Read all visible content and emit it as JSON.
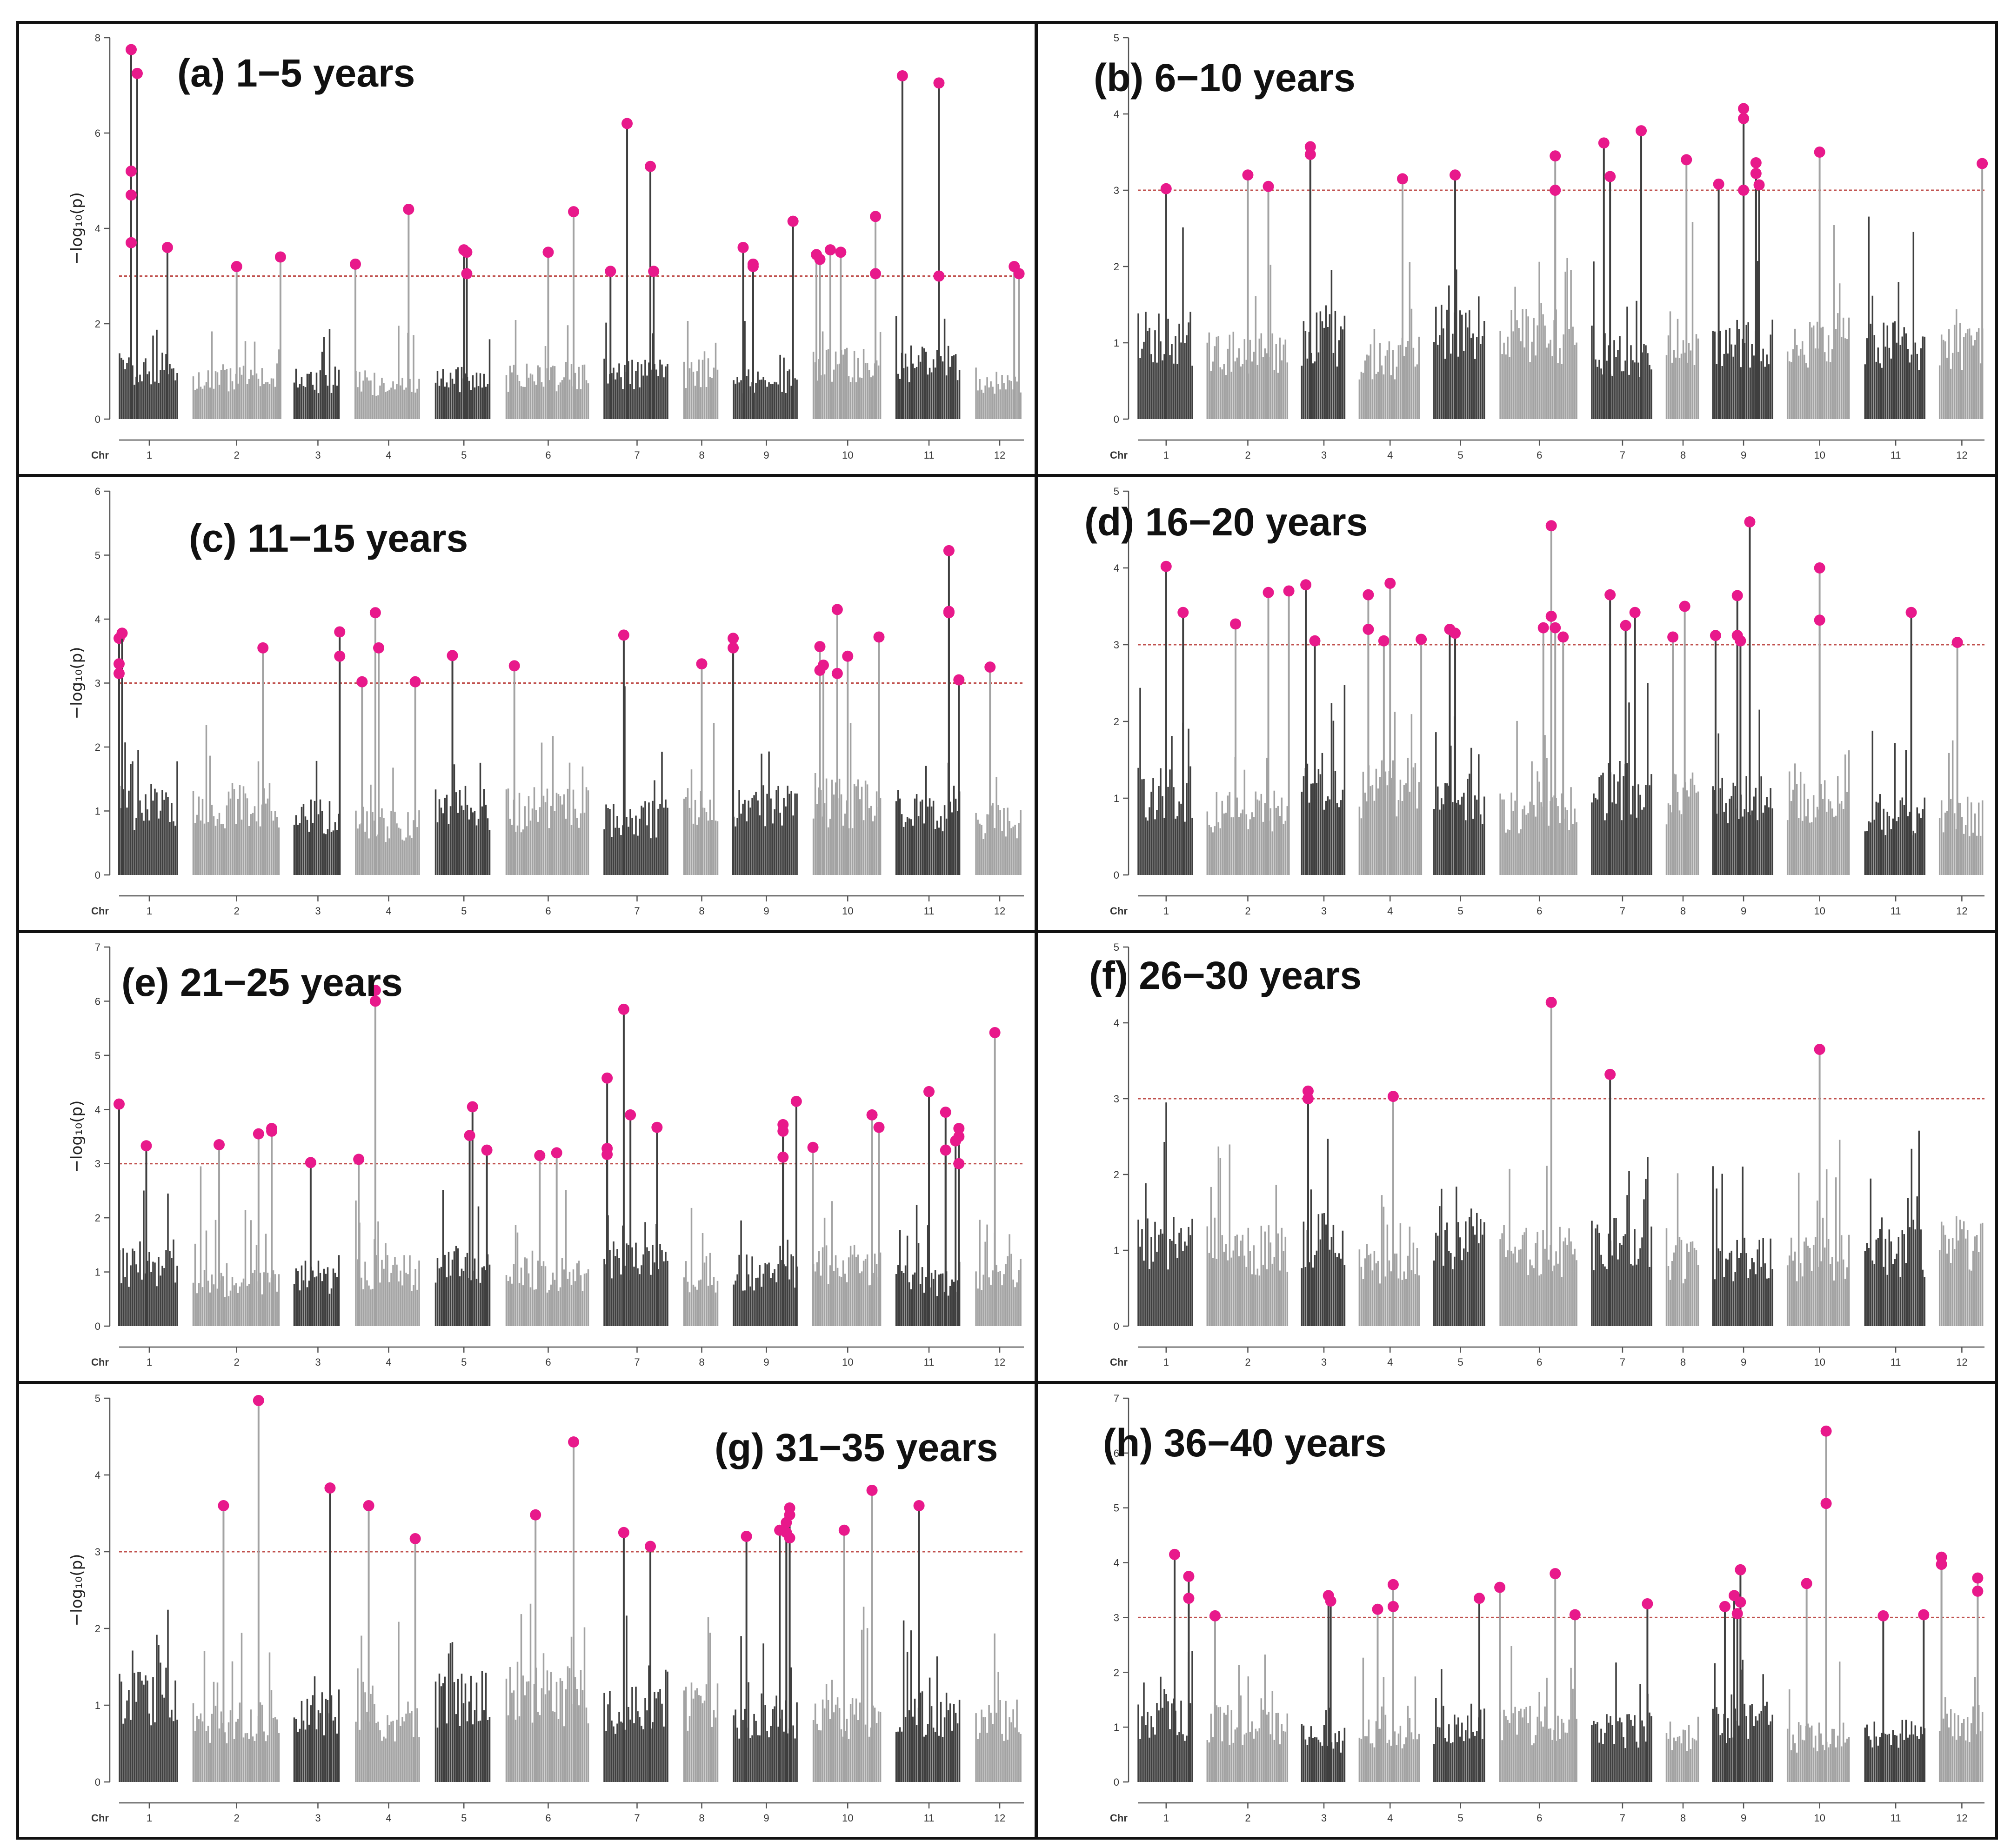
{
  "figure": {
    "axis_label": "−log₁₀(p)",
    "chr_label": "Chr",
    "chromosomes": [
      "1",
      "2",
      "3",
      "4",
      "5",
      "6",
      "7",
      "8",
      "9",
      "10",
      "11",
      "12"
    ],
    "threshold": 3,
    "colors": {
      "dark": "#3f3f3f",
      "light": "#a3a3a3",
      "peak": "#e8198b",
      "threshold": "#c0504d"
    }
  },
  "chart_data": [
    {
      "type": "scatter",
      "title": "(a) 1−5 years",
      "ylim": [
        0,
        8
      ],
      "yticks": [
        0,
        2,
        4,
        6,
        8
      ],
      "ylabel": "−log₁₀(p)",
      "xlabel": "Chr",
      "threshold": 3,
      "peaks": [
        [
          1,
          0.2,
          7.75
        ],
        [
          1,
          0.3,
          7.25
        ],
        [
          1,
          0.2,
          5.2
        ],
        [
          1,
          0.2,
          4.7
        ],
        [
          1,
          0.2,
          3.7
        ],
        [
          1,
          0.8,
          3.6
        ],
        [
          2,
          0.5,
          3.2
        ],
        [
          2,
          1.0,
          3.4
        ],
        [
          4,
          0.0,
          3.25
        ],
        [
          4,
          0.8,
          4.4
        ],
        [
          5,
          0.5,
          3.55
        ],
        [
          5,
          0.55,
          3.5
        ],
        [
          5,
          0.55,
          3.05
        ],
        [
          6,
          0.5,
          3.5
        ],
        [
          6,
          0.8,
          4.35
        ],
        [
          7,
          0.1,
          3.1
        ],
        [
          7,
          0.35,
          6.2
        ],
        [
          7,
          0.7,
          5.3
        ],
        [
          7,
          0.75,
          3.1
        ],
        [
          9,
          0.15,
          3.6
        ],
        [
          9,
          0.3,
          3.25
        ],
        [
          9,
          0.3,
          3.2
        ],
        [
          9,
          0.9,
          4.15
        ],
        [
          10,
          0.05,
          3.45
        ],
        [
          10,
          0.1,
          3.35
        ],
        [
          10,
          0.25,
          3.55
        ],
        [
          10,
          0.4,
          3.5
        ],
        [
          10,
          0.9,
          4.25
        ],
        [
          10,
          0.9,
          3.05
        ],
        [
          11,
          0.1,
          7.2
        ],
        [
          11,
          0.65,
          7.05
        ],
        [
          11,
          0.65,
          3.0
        ],
        [
          12,
          0.8,
          3.2
        ],
        [
          12,
          0.9,
          3.05
        ]
      ]
    },
    {
      "type": "scatter",
      "title": "(b) 6−10 years",
      "ylim": [
        0,
        5
      ],
      "yticks": [
        0,
        1,
        2,
        3,
        4,
        5
      ],
      "ylabel": "",
      "xlabel": "Chr",
      "threshold": 3,
      "peaks": [
        [
          1,
          0.5,
          3.02
        ],
        [
          2,
          0.5,
          3.2
        ],
        [
          2,
          0.75,
          3.05
        ],
        [
          3,
          0.2,
          3.57
        ],
        [
          3,
          0.2,
          3.47
        ],
        [
          4,
          0.7,
          3.15
        ],
        [
          5,
          0.4,
          3.2
        ],
        [
          6,
          0.7,
          3.45
        ],
        [
          6,
          0.7,
          3.0
        ],
        [
          7,
          0.2,
          3.62
        ],
        [
          7,
          0.3,
          3.18
        ],
        [
          7,
          0.8,
          3.78
        ],
        [
          8,
          0.6,
          3.4
        ],
        [
          9,
          0.1,
          3.08
        ],
        [
          9,
          0.5,
          4.07
        ],
        [
          9,
          0.5,
          3.94
        ],
        [
          9,
          0.5,
          3.0
        ],
        [
          9,
          0.7,
          3.36
        ],
        [
          9,
          0.7,
          3.22
        ],
        [
          9,
          0.75,
          3.07
        ],
        [
          10,
          0.5,
          3.5
        ],
        [
          12,
          0.95,
          3.35
        ]
      ]
    },
    {
      "type": "scatter",
      "title": "(c) 11−15 years",
      "ylim": [
        0,
        6
      ],
      "yticks": [
        0,
        1,
        2,
        3,
        4,
        5,
        6
      ],
      "ylabel": "−log₁₀(p)",
      "xlabel": "Chr",
      "threshold": 3,
      "peaks": [
        [
          1,
          0.0,
          3.7
        ],
        [
          1,
          0.05,
          3.78
        ],
        [
          1,
          0.0,
          3.3
        ],
        [
          1,
          0.0,
          3.15
        ],
        [
          2,
          0.8,
          3.55
        ],
        [
          3,
          0.95,
          3.8
        ],
        [
          3,
          0.95,
          3.42
        ],
        [
          4,
          0.1,
          3.02
        ],
        [
          4,
          0.3,
          4.1
        ],
        [
          4,
          0.35,
          3.55
        ],
        [
          4,
          0.9,
          3.02
        ],
        [
          5,
          0.3,
          3.43
        ],
        [
          6,
          0.1,
          3.27
        ],
        [
          7,
          0.3,
          3.75
        ],
        [
          8,
          0.5,
          3.3
        ],
        [
          9,
          0.0,
          3.7
        ],
        [
          9,
          0.0,
          3.55
        ],
        [
          10,
          0.1,
          3.57
        ],
        [
          10,
          0.15,
          3.28
        ],
        [
          10,
          0.1,
          3.2
        ],
        [
          10,
          0.35,
          4.15
        ],
        [
          10,
          0.35,
          3.15
        ],
        [
          10,
          0.5,
          3.42
        ],
        [
          10,
          0.95,
          3.72
        ],
        [
          11,
          0.8,
          5.07
        ],
        [
          11,
          0.8,
          4.12
        ],
        [
          11,
          0.8,
          4.1
        ],
        [
          11,
          0.95,
          3.05
        ],
        [
          12,
          0.3,
          3.25
        ]
      ]
    },
    {
      "type": "scatter",
      "title": "(d) 16−20 years",
      "ylim": [
        0,
        5
      ],
      "yticks": [
        0,
        1,
        2,
        3,
        4,
        5
      ],
      "ylabel": "",
      "xlabel": "Chr",
      "threshold": 3,
      "peaks": [
        [
          1,
          0.5,
          4.02
        ],
        [
          1,
          0.8,
          3.42
        ],
        [
          2,
          0.35,
          3.27
        ],
        [
          2,
          0.75,
          3.68
        ],
        [
          2,
          1.0,
          3.7
        ],
        [
          3,
          0.1,
          3.78
        ],
        [
          3,
          0.3,
          3.05
        ],
        [
          4,
          0.15,
          3.65
        ],
        [
          4,
          0.15,
          3.2
        ],
        [
          4,
          0.4,
          3.05
        ],
        [
          4,
          0.5,
          3.8
        ],
        [
          4,
          1.0,
          3.07
        ],
        [
          5,
          0.3,
          3.2
        ],
        [
          5,
          0.4,
          3.15
        ],
        [
          6,
          0.65,
          4.55
        ],
        [
          6,
          0.65,
          3.37
        ],
        [
          6,
          0.55,
          3.22
        ],
        [
          6,
          0.7,
          3.22
        ],
        [
          6,
          0.8,
          3.1
        ],
        [
          7,
          0.3,
          3.65
        ],
        [
          7,
          0.55,
          3.25
        ],
        [
          7,
          0.7,
          3.42
        ],
        [
          8,
          0.2,
          3.1
        ],
        [
          8,
          0.55,
          3.5
        ],
        [
          9,
          0.05,
          3.12
        ],
        [
          9,
          0.4,
          3.64
        ],
        [
          9,
          0.4,
          3.12
        ],
        [
          9,
          0.45,
          3.05
        ],
        [
          9,
          0.6,
          4.6
        ],
        [
          10,
          0.5,
          4.0
        ],
        [
          10,
          0.5,
          3.32
        ],
        [
          11,
          0.75,
          3.42
        ],
        [
          12,
          0.4,
          3.03
        ]
      ]
    },
    {
      "type": "scatter",
      "title": "(e) 21−25 years",
      "ylim": [
        0,
        7
      ],
      "yticks": [
        0,
        1,
        2,
        3,
        4,
        5,
        6,
        7
      ],
      "ylabel": "−log₁₀(p)",
      "xlabel": "Chr",
      "threshold": 3,
      "peaks": [
        [
          1,
          0.0,
          4.1
        ],
        [
          1,
          0.45,
          3.33
        ],
        [
          2,
          0.3,
          3.35
        ],
        [
          2,
          0.75,
          3.55
        ],
        [
          2,
          0.9,
          3.65
        ],
        [
          2,
          0.9,
          3.6
        ],
        [
          3,
          0.35,
          3.02
        ],
        [
          4,
          0.05,
          3.08
        ],
        [
          4,
          0.3,
          6.2
        ],
        [
          4,
          0.3,
          6.0
        ],
        [
          5,
          0.65,
          4.05
        ],
        [
          5,
          0.6,
          3.52
        ],
        [
          5,
          0.9,
          3.25
        ],
        [
          6,
          0.4,
          3.15
        ],
        [
          6,
          0.6,
          3.2
        ],
        [
          7,
          0.05,
          4.58
        ],
        [
          7,
          0.05,
          3.28
        ],
        [
          7,
          0.05,
          3.17
        ],
        [
          7,
          0.3,
          5.85
        ],
        [
          7,
          0.4,
          3.9
        ],
        [
          7,
          0.8,
          3.67
        ],
        [
          9,
          0.75,
          3.72
        ],
        [
          9,
          0.75,
          3.6
        ],
        [
          9,
          0.75,
          3.12
        ],
        [
          9,
          0.95,
          4.15
        ],
        [
          10,
          0.0,
          3.3
        ],
        [
          10,
          0.85,
          3.9
        ],
        [
          10,
          0.95,
          3.67
        ],
        [
          11,
          0.5,
          4.33
        ],
        [
          11,
          0.75,
          3.95
        ],
        [
          11,
          0.75,
          3.25
        ],
        [
          11,
          0.95,
          3.65
        ],
        [
          11,
          0.95,
          3.5
        ],
        [
          11,
          0.9,
          3.42
        ],
        [
          11,
          0.95,
          3.0
        ],
        [
          12,
          0.4,
          5.42
        ]
      ]
    },
    {
      "type": "scatter",
      "title": "(f) 26−30 years",
      "ylim": [
        0,
        5
      ],
      "yticks": [
        0,
        1,
        2,
        3,
        4,
        5
      ],
      "ylabel": "",
      "xlabel": "Chr",
      "threshold": 3,
      "peaks": [
        [
          3,
          0.15,
          3.1
        ],
        [
          3,
          0.15,
          3.0
        ],
        [
          4,
          0.55,
          3.03
        ],
        [
          6,
          0.65,
          4.27
        ],
        [
          7,
          0.3,
          3.32
        ],
        [
          10,
          0.5,
          3.65
        ]
      ]
    },
    {
      "type": "scatter",
      "title": "(g) 31−35 years",
      "ylim": [
        0,
        5
      ],
      "yticks": [
        0,
        1,
        2,
        3,
        4,
        5
      ],
      "ylabel": "−log₁₀(p)",
      "xlabel": "Chr",
      "threshold": 3,
      "peaks": [
        [
          2,
          0.35,
          3.6
        ],
        [
          2,
          0.75,
          4.97
        ],
        [
          3,
          0.75,
          3.83
        ],
        [
          4,
          0.2,
          3.6
        ],
        [
          4,
          0.9,
          3.17
        ],
        [
          6,
          0.35,
          3.48
        ],
        [
          6,
          0.8,
          4.43
        ],
        [
          7,
          0.3,
          3.25
        ],
        [
          7,
          0.7,
          3.07
        ],
        [
          9,
          0.2,
          3.2
        ],
        [
          9,
          0.7,
          3.28
        ],
        [
          9,
          0.85,
          3.57
        ],
        [
          9,
          0.85,
          3.48
        ],
        [
          9,
          0.8,
          3.38
        ],
        [
          9,
          0.8,
          3.25
        ],
        [
          9,
          0.85,
          3.18
        ],
        [
          10,
          0.45,
          3.28
        ],
        [
          10,
          0.85,
          3.8
        ],
        [
          11,
          0.35,
          3.6
        ]
      ]
    },
    {
      "type": "scatter",
      "title": "(h) 36−40 years",
      "ylim": [
        0,
        7
      ],
      "yticks": [
        0,
        1,
        2,
        3,
        4,
        5,
        6,
        7
      ],
      "ylabel": "",
      "xlabel": "Chr",
      "threshold": 3,
      "peaks": [
        [
          1,
          0.65,
          4.15
        ],
        [
          1,
          0.9,
          3.75
        ],
        [
          1,
          0.9,
          3.35
        ],
        [
          2,
          0.1,
          3.03
        ],
        [
          3,
          0.6,
          3.4
        ],
        [
          3,
          0.65,
          3.3
        ],
        [
          4,
          0.3,
          3.15
        ],
        [
          4,
          0.55,
          3.6
        ],
        [
          4,
          0.55,
          3.2
        ],
        [
          5,
          0.85,
          3.35
        ],
        [
          6,
          0.0,
          3.55
        ],
        [
          6,
          0.7,
          3.8
        ],
        [
          6,
          0.95,
          3.05
        ],
        [
          7,
          0.9,
          3.25
        ],
        [
          9,
          0.2,
          3.2
        ],
        [
          9,
          0.35,
          3.4
        ],
        [
          9,
          0.45,
          3.87
        ],
        [
          9,
          0.45,
          3.28
        ],
        [
          9,
          0.4,
          3.07
        ],
        [
          10,
          0.3,
          3.62
        ],
        [
          10,
          0.6,
          6.4
        ],
        [
          10,
          0.6,
          5.08
        ],
        [
          11,
          0.3,
          3.03
        ],
        [
          11,
          0.95,
          3.05
        ],
        [
          12,
          0.05,
          4.1
        ],
        [
          12,
          0.05,
          3.97
        ],
        [
          12,
          0.85,
          3.72
        ],
        [
          12,
          0.85,
          3.48
        ]
      ]
    }
  ]
}
